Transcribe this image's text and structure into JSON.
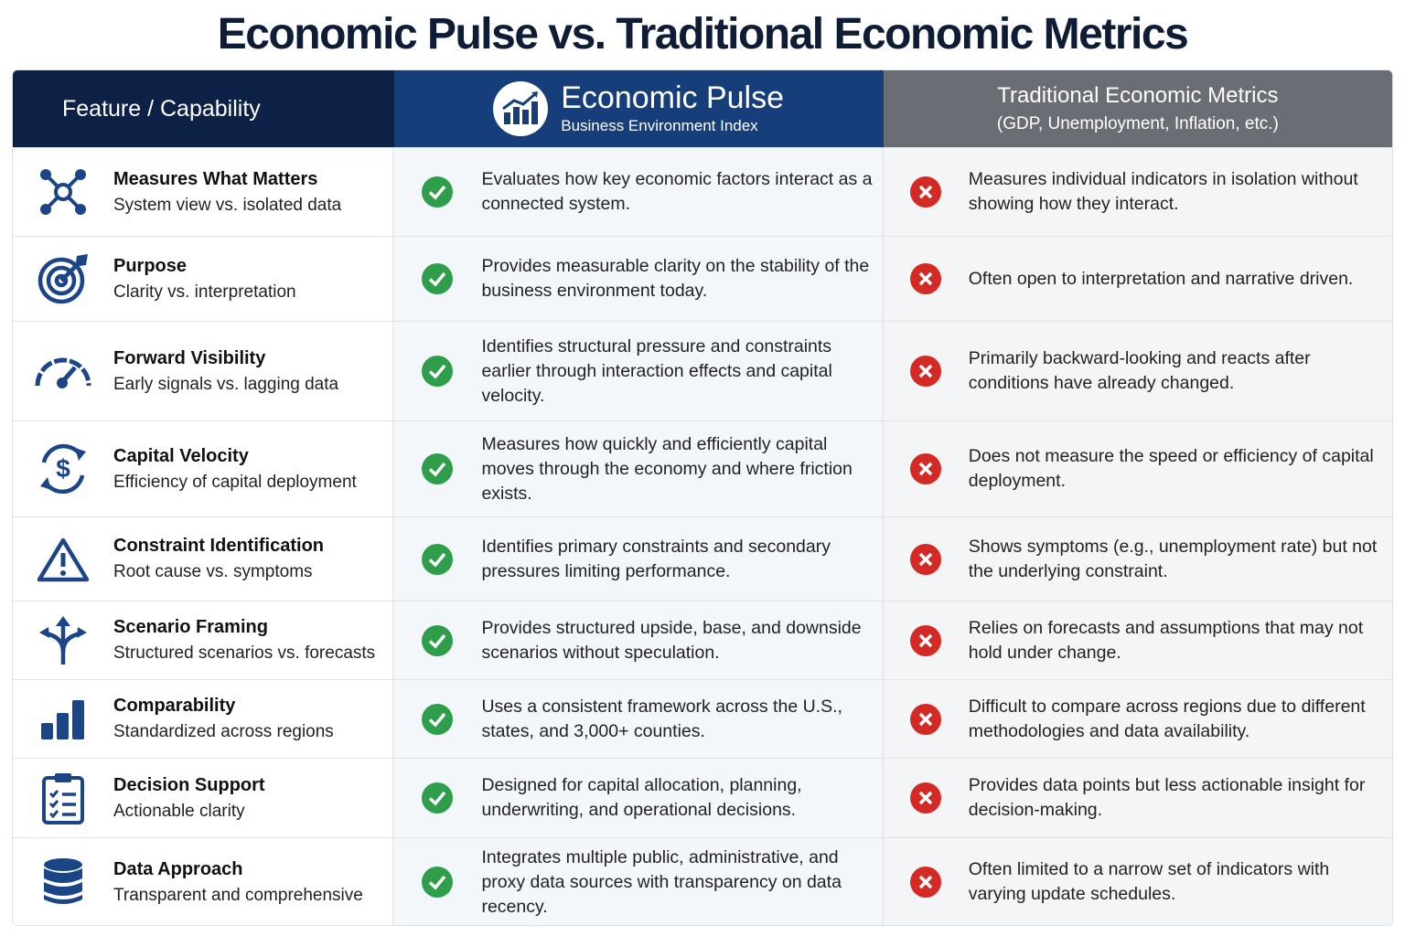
{
  "title": "Economic Pulse vs. Traditional Economic Metrics",
  "header": {
    "feature": "Feature / Capability",
    "economic_pulse_title": "Economic Pulse",
    "economic_pulse_subtitle": "Business Environment Index",
    "traditional_title": "Traditional Economic Metrics",
    "traditional_subtitle": "(GDP, Unemployment, Inflation, etc.)"
  },
  "colors": {
    "check": "#2e9e4a",
    "cross": "#d42a26",
    "icon": "#1b4586"
  },
  "rows": [
    {
      "icon": "network-icon",
      "name": "Measures What Matters",
      "sub": "System view vs. isolated data",
      "pulse": "Evaluates how key economic factors interact as a connected system.",
      "traditional": "Measures individual indicators in isolation without showing how they interact."
    },
    {
      "icon": "target-icon",
      "name": "Purpose",
      "sub": "Clarity vs. interpretation",
      "pulse": "Provides measurable clarity on the stability of the business environment today.",
      "traditional": "Often open to interpretation and narrative driven."
    },
    {
      "icon": "gauge-icon",
      "name": "Forward Visibility",
      "sub": "Early signals vs. lagging data",
      "pulse": "Identifies structural pressure and constraints earlier through interaction effects and capital velocity.",
      "traditional": "Primarily backward-looking and reacts after conditions have already changed."
    },
    {
      "icon": "dollar-cycle-icon",
      "name": "Capital Velocity",
      "sub": "Efficiency of capital deployment",
      "pulse": "Measures how quickly and efficiently capital moves through the economy and where friction exists.",
      "traditional": "Does not measure the speed or efficiency of capital deployment."
    },
    {
      "icon": "warning-icon",
      "name": "Constraint Identification",
      "sub": "Root cause vs. symptoms",
      "pulse": "Identifies primary constraints and secondary pressures limiting performance.",
      "traditional": "Shows symptoms (e.g., unemployment rate) but not the underlying constraint."
    },
    {
      "icon": "split-arrows-icon",
      "name": "Scenario Framing",
      "sub": "Structured scenarios vs. forecasts",
      "pulse": "Provides structured upside, base, and downside scenarios without speculation.",
      "traditional": "Relies on forecasts and assumptions that may not hold under change."
    },
    {
      "icon": "bar-chart-icon",
      "name": "Comparability",
      "sub": "Standardized across regions",
      "pulse": "Uses a consistent framework across the U.S., states, and 3,000+ counties.",
      "traditional": "Difficult to compare across regions due to different methodologies and data availability."
    },
    {
      "icon": "clipboard-checklist-icon",
      "name": "Decision Support",
      "sub": "Actionable clarity",
      "pulse": "Designed for capital allocation, planning, underwriting, and operational decisions.",
      "traditional": "Provides data points but less actionable insight for decision-making."
    },
    {
      "icon": "database-icon",
      "name": "Data Approach",
      "sub": "Transparent and comprehensive",
      "pulse": "Integrates multiple public, administrative, and proxy data sources with transparency on data recency.",
      "traditional": "Often limited to a narrow set of indicators with varying update schedules."
    }
  ]
}
